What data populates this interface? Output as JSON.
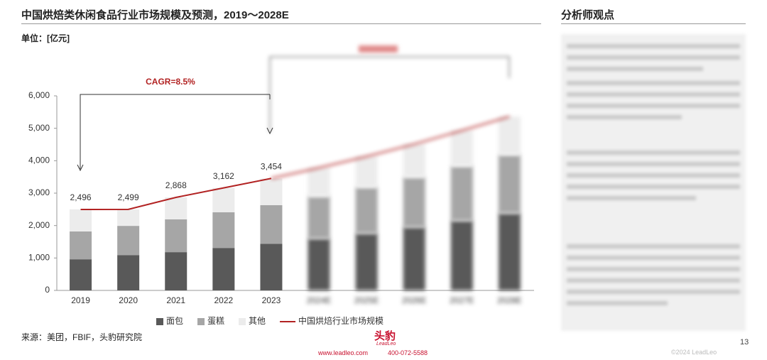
{
  "header": {
    "title": "中国烘焙类休闲食品行业市场规模及预测，2019～2028E",
    "unit": "单位：[亿元]"
  },
  "chart_data": {
    "type": "bar",
    "stacked": true,
    "categories": [
      "2019",
      "2020",
      "2021",
      "2022",
      "2023",
      "2024E",
      "2025E",
      "2026E",
      "2027E",
      "2028E"
    ],
    "series": [
      {
        "name": "面包",
        "color": "#595959",
        "values": [
          960,
          1090,
          1180,
          1310,
          1440,
          1600,
          1760,
          1950,
          2150,
          2380
        ]
      },
      {
        "name": "蛋糕",
        "color": "#a6a6a6",
        "values": [
          860,
          900,
          1010,
          1100,
          1190,
          1300,
          1420,
          1540,
          1680,
          1800
        ]
      },
      {
        "name": "其他",
        "color": "#ececec",
        "values": [
          680,
          510,
          680,
          750,
          820,
          880,
          950,
          1020,
          1100,
          1180
        ]
      },
      {
        "name": "中国烘焙行业市场规模",
        "type": "line",
        "color": "#b22222",
        "values": [
          2496,
          2499,
          2868,
          3162,
          3454,
          3780,
          4130,
          4510,
          4930,
          5360
        ],
        "value_labels": [
          "2,496",
          "2,499",
          "2,868",
          "3,162",
          "3,454",
          null,
          null,
          null,
          null,
          null
        ]
      }
    ],
    "ylim": [
      0,
      6000
    ],
    "yticks": [
      0,
      {
        "value": 1000,
        "label": "1,000"
      },
      {
        "value": 2000,
        "label": "2,000"
      },
      {
        "value": 3000,
        "label": "3,000"
      },
      {
        "value": 4000,
        "label": "4,000"
      },
      {
        "value": 5000,
        "label": "5,000"
      },
      {
        "value": 6000,
        "label": "6,000"
      }
    ],
    "annotation": "CAGR=8.5%"
  },
  "panel": {
    "title": "分析师观点"
  },
  "source": "来源：美团，FBIF，头豹研究院",
  "footer": {
    "brand": "头豹",
    "brand_sub": "LeadLeo",
    "website": "www.leadleo.com",
    "phone": "400-072-5588",
    "page": "13",
    "copyright": "©2024 LeadLeo"
  }
}
